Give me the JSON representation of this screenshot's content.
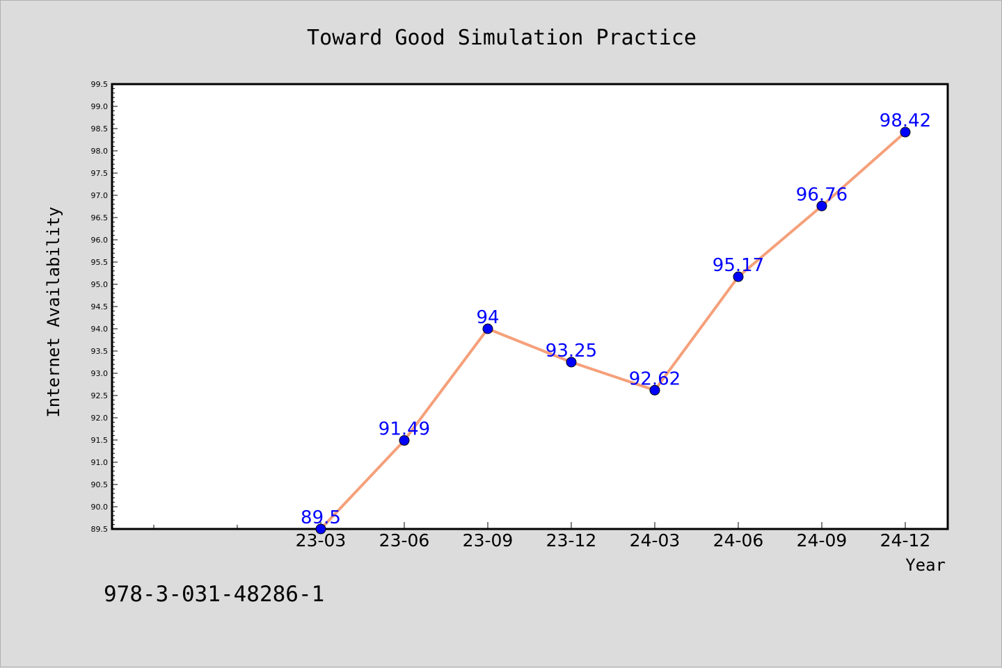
{
  "chart_data": {
    "type": "line",
    "title": "Toward Good Simulation Practice",
    "xlabel": "Year",
    "ylabel": "Internet Availability",
    "categories": [
      "23-03",
      "23-06",
      "23-09",
      "23-12",
      "24-03",
      "24-06",
      "24-09",
      "24-12"
    ],
    "series": [
      {
        "values": [
          89.5,
          91.49,
          94,
          93.25,
          92.62,
          95.17,
          96.76,
          98.42
        ],
        "data_labels": [
          "89.5",
          "91.49",
          "94",
          "93.25",
          "92.62",
          "95.17",
          "96.76",
          "98.42"
        ]
      }
    ],
    "y_ticks": [
      "89.5",
      "90.0",
      "90.5",
      "91.0",
      "91.5",
      "92.0",
      "92.5",
      "93.0",
      "93.5",
      "94.0",
      "94.5",
      "95.0",
      "95.5",
      "96.0",
      "96.5",
      "97.0",
      "97.5",
      "98.0",
      "98.5",
      "99.0",
      "99.5"
    ],
    "ylim": [
      89.5,
      99.5
    ],
    "grid": false,
    "legend": "none",
    "colors": {
      "line": "#f5a07a",
      "marker": "#0000ff",
      "data_label": "#0000ff",
      "plot_background": "#ffffff",
      "page_background": "#dcdcdc"
    }
  },
  "footnote": "978-3-031-48286-1"
}
